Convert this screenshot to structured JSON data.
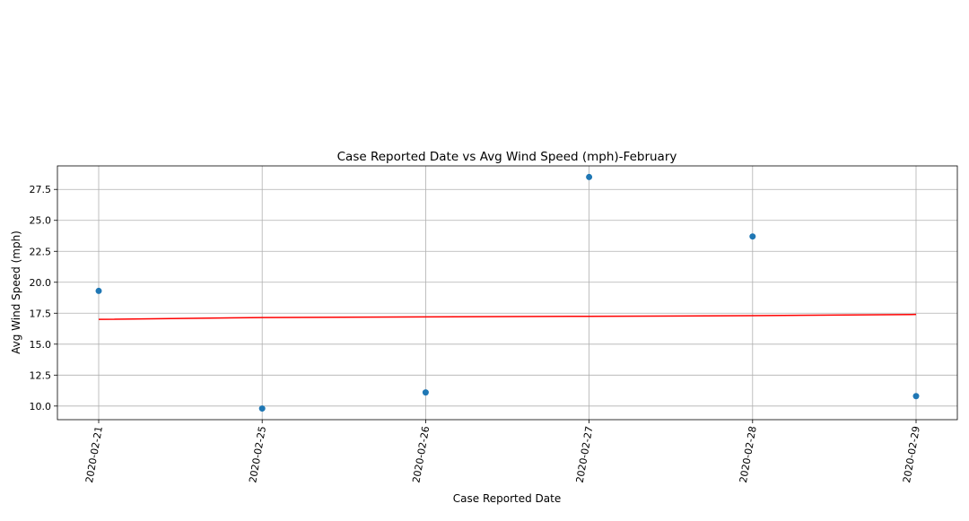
{
  "chart_data": {
    "type": "scatter",
    "title": "Case Reported Date vs Avg Wind Speed (mph)-February",
    "xlabel": "Case Reported Date",
    "ylabel": "Avg Wind Speed (mph)",
    "categories": [
      "2020-02-21",
      "2020-02-25",
      "2020-02-26",
      "2020-02-27",
      "2020-02-28",
      "2020-02-29"
    ],
    "y_ticks": [
      10.0,
      12.5,
      15.0,
      17.5,
      20.0,
      22.5,
      25.0,
      27.5
    ],
    "y_tick_labels": [
      "10.0",
      "12.5",
      "15.0",
      "17.5",
      "20.0",
      "22.5",
      "25.0",
      "27.5"
    ],
    "ylim": [
      8.9,
      29.4
    ],
    "grid": true,
    "series": [
      {
        "values": [
          19.3,
          9.8,
          11.1,
          28.5,
          23.7,
          10.8
        ],
        "color": "#1f77b4",
        "marker": "circle"
      }
    ],
    "trend_line": {
      "values": [
        17.0,
        17.15,
        17.2,
        17.25,
        17.3,
        17.4
      ],
      "color": "#ff0000"
    }
  }
}
